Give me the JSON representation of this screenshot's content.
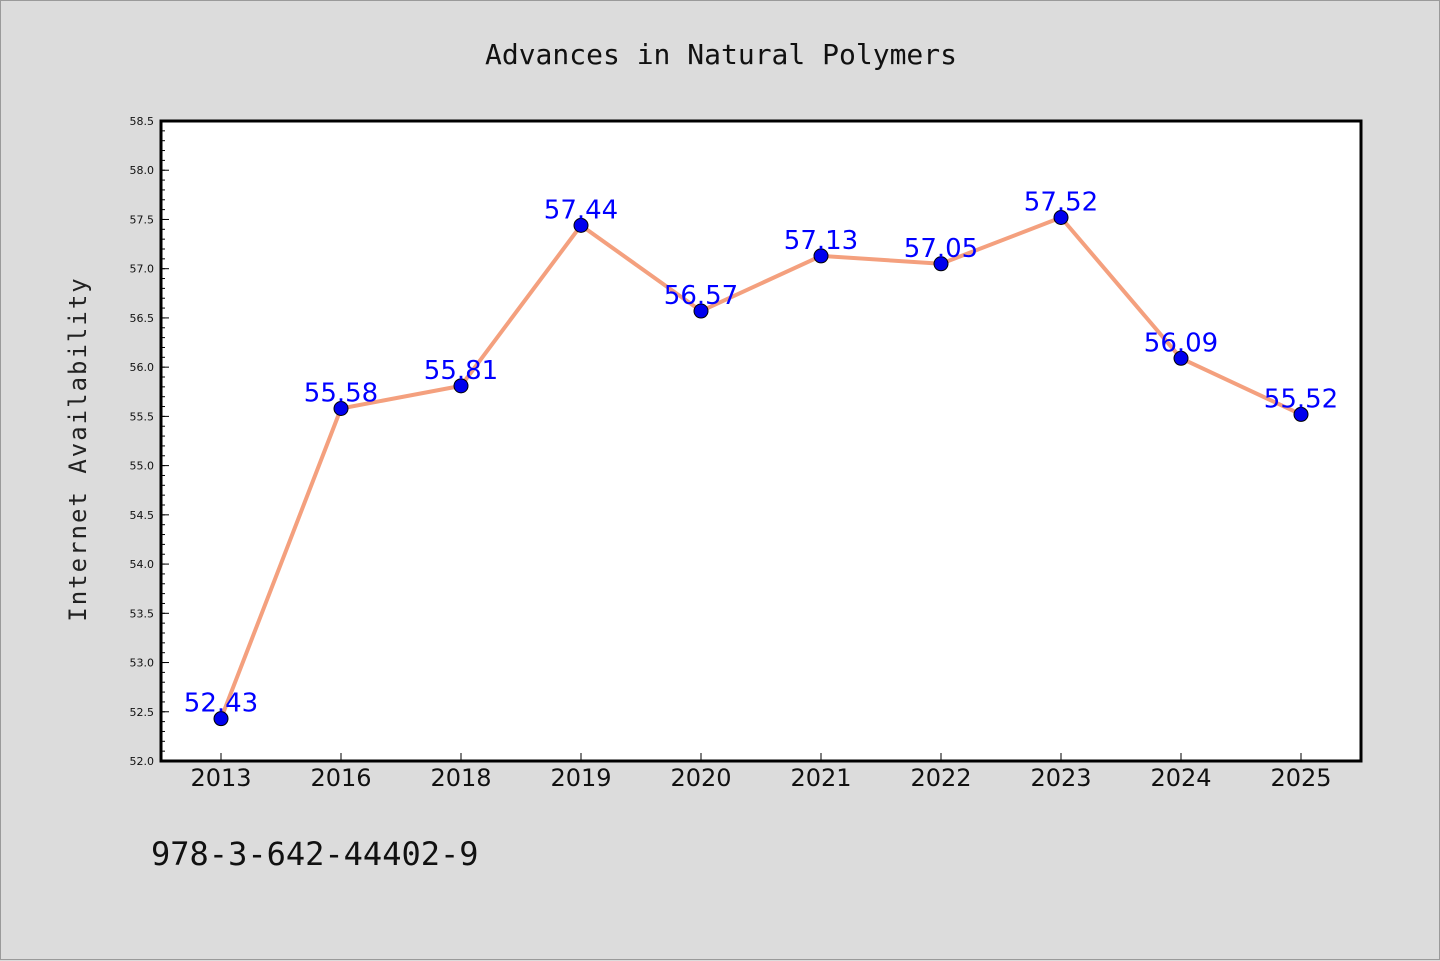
{
  "page": {
    "footer_code": "978-3-642-44402-9"
  },
  "chart_data": {
    "type": "line",
    "title": "Advances in Natural Polymers",
    "xlabel": "",
    "ylabel": "Internet Availability",
    "categories": [
      "2013",
      "2016",
      "2018",
      "2019",
      "2020",
      "2021",
      "2022",
      "2023",
      "2024",
      "2025"
    ],
    "series": [
      {
        "values": [
          52.43,
          55.58,
          55.81,
          57.44,
          56.57,
          57.13,
          57.05,
          57.52,
          56.09,
          55.52
        ],
        "labels": [
          "52.43",
          "55.58",
          "55.81",
          "57.44",
          "56.57",
          "57.13",
          "57.05",
          "57.52",
          "56.09",
          "55.52"
        ],
        "line_color": "#f4a07e",
        "marker_color": "#0000ee",
        "label_color": "#0000ff"
      }
    ],
    "ylim": [
      52.0,
      58.5
    ],
    "yticks": [
      "52.0",
      "52.5",
      "53.0",
      "53.5",
      "54.0",
      "54.5",
      "55.0",
      "55.5",
      "56.0",
      "56.5",
      "57.0",
      "57.5",
      "58.0",
      "58.5"
    ],
    "grid": false,
    "legend": "none"
  }
}
